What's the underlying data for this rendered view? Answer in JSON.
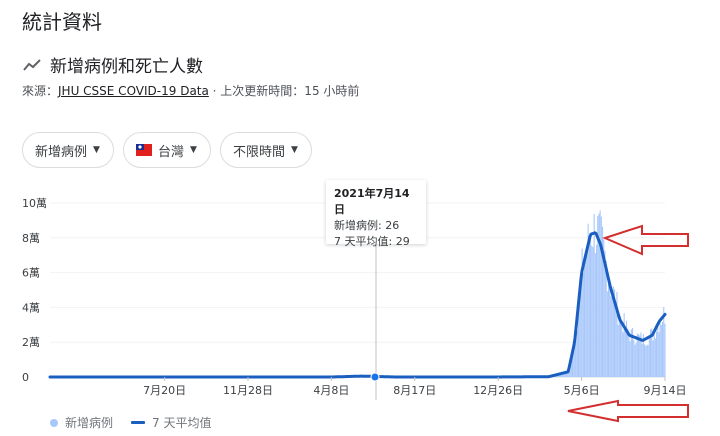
{
  "page_title": "統計資料",
  "section": {
    "title": "新增病例和死亡人數",
    "icon": "trending-icon"
  },
  "source": {
    "prefix": "來源：",
    "link": "JHU CSSE COVID-19 Data",
    "suffix": " · 上次更新時間：15 小時前"
  },
  "filters": {
    "metric": "新增病例",
    "location": "台灣",
    "time_range": "不限時間"
  },
  "tooltip": {
    "date": "2021年7月14日",
    "line1": "新增病例: 26",
    "line2": "7 天平均值: 29"
  },
  "legend": {
    "series1": "新增病例",
    "series2": "7 天平均值"
  },
  "colors": {
    "bars": "#a8c7fa",
    "line": "#1a5fbf",
    "annotation": "#d32f2f"
  },
  "chart_data": {
    "type": "area",
    "y_ticks": [
      "0",
      "2萬",
      "4萬",
      "6萬",
      "8萬",
      "10萬"
    ],
    "y_range": [
      0,
      100000
    ],
    "x_ticks": [
      "7月20日",
      "11月28日",
      "4月8日",
      "8月17日",
      "12月26日",
      "5月6日",
      "9月14日"
    ],
    "x_categories_full": [
      "2020-07-20",
      "2020-11-28",
      "2021-04-08",
      "2021-08-17",
      "2021-12-26",
      "2022-05-06",
      "2022-09-14"
    ],
    "series": [
      {
        "name": "7 天平均值",
        "points": [
          [
            "2020-01-22",
            0
          ],
          [
            "2020-07-20",
            0
          ],
          [
            "2020-11-28",
            0
          ],
          [
            "2021-04-08",
            0
          ],
          [
            "2021-05-25",
            500
          ],
          [
            "2021-06-10",
            400
          ],
          [
            "2021-07-14",
            29
          ],
          [
            "2021-08-17",
            10
          ],
          [
            "2021-12-26",
            20
          ],
          [
            "2022-03-15",
            150
          ],
          [
            "2022-04-15",
            3000
          ],
          [
            "2022-04-25",
            20000
          ],
          [
            "2022-05-06",
            60000
          ],
          [
            "2022-05-20",
            82000
          ],
          [
            "2022-05-28",
            83000
          ],
          [
            "2022-06-05",
            76000
          ],
          [
            "2022-06-20",
            52000
          ],
          [
            "2022-07-05",
            33000
          ],
          [
            "2022-07-20",
            24000
          ],
          [
            "2022-08-10",
            21000
          ],
          [
            "2022-08-25",
            24000
          ],
          [
            "2022-09-05",
            32000
          ],
          [
            "2022-09-14",
            36000
          ]
        ]
      }
    ],
    "highlight_point": {
      "date": "2021-07-14",
      "new_cases": 26,
      "avg7": 29
    }
  }
}
